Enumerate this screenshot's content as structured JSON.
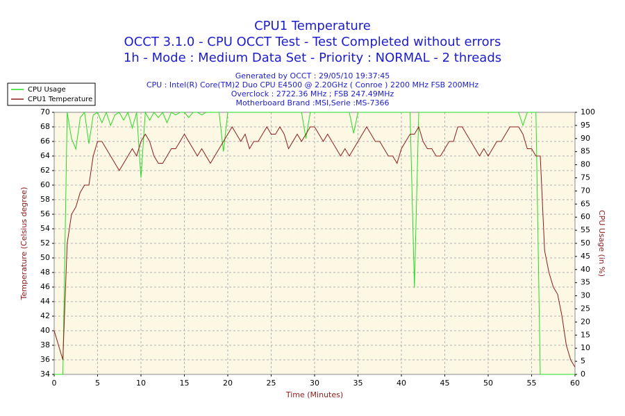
{
  "chart_data": {
    "type": "line",
    "title": "CPU1 Temperature",
    "title_lines": [
      "OCCT 3.1.0 - CPU OCCT Test - Test Completed without errors",
      "1h - Mode : Medium Data Set - Priority : NORMAL - 2 threads"
    ],
    "subtitle_lines": [
      "Generated by OCCT : 29/05/10 19:37:45",
      "CPU : Intel(R) Core(TM)2 Duo CPU E4500 @ 2.20GHz ( Conroe ) 2200 MHz FSB 200MHz",
      "Overclock : 2722.36 MHz ; FSB 247.49MHz",
      "Motherboard Brand :MSI,Serie :MS-7366"
    ],
    "xlabel": "Time (Minutes)",
    "ylabel": "Temperature (Celsius degree)",
    "y2label": "CPU Usage (in %)",
    "xlim": [
      0,
      60
    ],
    "xticks": [
      0,
      5,
      10,
      15,
      20,
      25,
      30,
      35,
      40,
      45,
      50,
      55,
      60
    ],
    "ylim": [
      34,
      70
    ],
    "yticks": [
      34,
      36,
      38,
      40,
      42,
      44,
      46,
      48,
      50,
      52,
      54,
      56,
      58,
      60,
      62,
      64,
      66,
      68,
      70
    ],
    "y2lim": [
      0,
      100
    ],
    "y2ticks": [
      0,
      5,
      10,
      15,
      20,
      25,
      30,
      35,
      40,
      45,
      50,
      55,
      60,
      65,
      70,
      75,
      80,
      85,
      90,
      95,
      100
    ],
    "grid": true,
    "legend": "top-left",
    "x": [
      0,
      0.5,
      1,
      1.5,
      2,
      2.5,
      3,
      3.5,
      4,
      4.5,
      5,
      5.5,
      6,
      6.5,
      7,
      7.5,
      8,
      8.5,
      9,
      9.5,
      10,
      10.5,
      11,
      11.5,
      12,
      12.5,
      13,
      13.5,
      14,
      14.5,
      15,
      15.5,
      16,
      16.5,
      17,
      17.5,
      18,
      18.5,
      19,
      19.5,
      20,
      20.5,
      21,
      21.5,
      22,
      22.5,
      23,
      23.5,
      24,
      24.5,
      25,
      25.5,
      26,
      26.5,
      27,
      27.5,
      28,
      28.5,
      29,
      29.5,
      30,
      30.5,
      31,
      31.5,
      32,
      32.5,
      33,
      33.5,
      34,
      34.5,
      35,
      35.5,
      36,
      36.5,
      37,
      37.5,
      38,
      38.5,
      39,
      39.5,
      40,
      40.5,
      41,
      41.5,
      42,
      42.5,
      43,
      43.5,
      44,
      44.5,
      45,
      45.5,
      46,
      46.5,
      47,
      47.5,
      48,
      48.5,
      49,
      49.5,
      50,
      50.5,
      51,
      51.5,
      52,
      52.5,
      53,
      53.5,
      54,
      54.5,
      55,
      55.5,
      56,
      56.5,
      57,
      57.5,
      58,
      58.5,
      59,
      59.5,
      60
    ],
    "series": [
      {
        "name": "CPU Usage",
        "color": "#22dd22",
        "axis": "y2",
        "values": [
          0,
          0,
          0,
          100,
          90,
          86,
          98,
          100,
          88,
          99,
          100,
          96,
          100,
          95,
          99,
          100,
          97,
          100,
          94,
          100,
          75,
          100,
          97,
          100,
          98,
          100,
          96,
          100,
          99,
          100,
          100,
          98,
          100,
          100,
          99,
          100,
          100,
          100,
          100,
          85,
          100,
          100,
          100,
          100,
          100,
          100,
          100,
          100,
          100,
          100,
          100,
          100,
          100,
          100,
          100,
          100,
          100,
          100,
          90,
          100,
          100,
          100,
          100,
          100,
          100,
          100,
          100,
          100,
          100,
          92,
          100,
          100,
          100,
          100,
          100,
          100,
          100,
          100,
          100,
          100,
          100,
          100,
          100,
          33,
          100,
          100,
          100,
          100,
          100,
          100,
          100,
          100,
          100,
          100,
          100,
          100,
          100,
          100,
          100,
          100,
          100,
          100,
          100,
          100,
          100,
          100,
          100,
          100,
          95,
          100,
          100,
          100,
          0,
          0,
          0,
          0,
          0,
          0,
          0,
          0,
          0
        ]
      },
      {
        "name": "CPU1 Temperature",
        "color": "#8b1a1a",
        "values": [
          40,
          38,
          36,
          52,
          56,
          57,
          59,
          60,
          60,
          64,
          66,
          66,
          65,
          64,
          63,
          62,
          63,
          64,
          65,
          64,
          66,
          67,
          66,
          64,
          63,
          63,
          64,
          65,
          65,
          66,
          67,
          66,
          65,
          64,
          65,
          64,
          63,
          64,
          65,
          66,
          67,
          68,
          67,
          66,
          67,
          65,
          66,
          66,
          67,
          68,
          67,
          67,
          68,
          67,
          65,
          66,
          67,
          66,
          67,
          68,
          68,
          67,
          66,
          67,
          66,
          65,
          64,
          65,
          64,
          65,
          66,
          67,
          68,
          67,
          66,
          66,
          65,
          64,
          64,
          63,
          65,
          66,
          67,
          67,
          68,
          66,
          65,
          65,
          64,
          64,
          65,
          66,
          66,
          68,
          68,
          67,
          66,
          65,
          64,
          65,
          64,
          65,
          66,
          66,
          67,
          68,
          68,
          68,
          67,
          65,
          65,
          64,
          64,
          51,
          48,
          46,
          45,
          42,
          38,
          36,
          35
        ]
      }
    ]
  }
}
